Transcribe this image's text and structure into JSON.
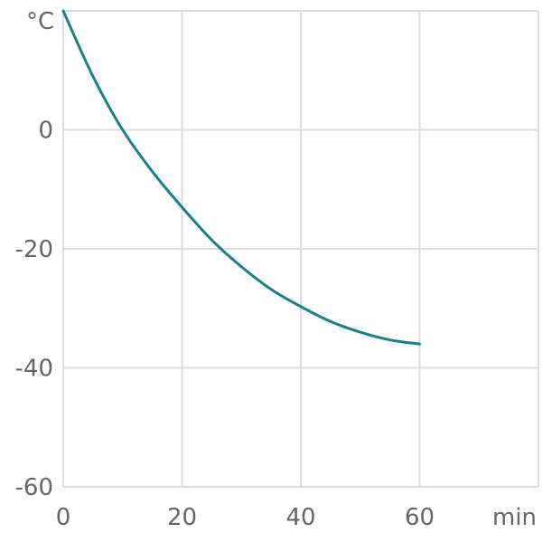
{
  "chart_data": {
    "type": "line",
    "title": "",
    "xlabel": "min",
    "ylabel": "°C",
    "x_ticks": [
      0,
      20,
      40,
      60
    ],
    "y_ticks": [
      0,
      -20,
      -40,
      -60
    ],
    "xlim": [
      0,
      80
    ],
    "ylim": [
      -60,
      20
    ],
    "grid": true,
    "series": [
      {
        "color": "#1a7f8c",
        "x": [
          0,
          5,
          10,
          15,
          20,
          25,
          30,
          35,
          40,
          45,
          50,
          55,
          60
        ],
        "y": [
          20,
          9,
          0,
          -7,
          -13,
          -18.5,
          -23,
          -26.8,
          -29.7,
          -32.2,
          -34,
          -35.3,
          -36
        ]
      }
    ]
  }
}
